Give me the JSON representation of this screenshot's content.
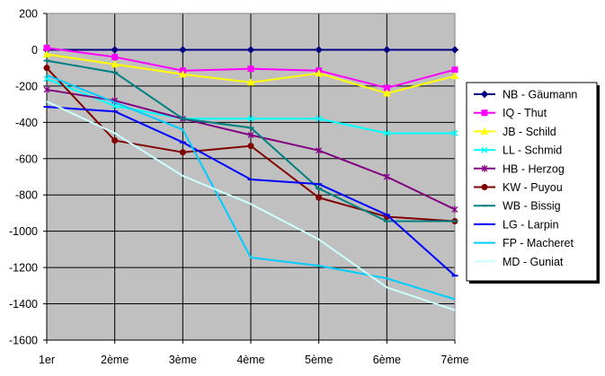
{
  "chart_data": {
    "type": "line",
    "categories": [
      "1er",
      "2ème",
      "3ème",
      "4ème",
      "5ème",
      "6ème",
      "7ème"
    ],
    "ylim": [
      -1600,
      200
    ],
    "yticks": [
      200,
      0,
      -200,
      -400,
      -600,
      -800,
      -1000,
      -1200,
      -1400,
      -1600
    ],
    "grid": true,
    "legend_position": "right",
    "plot_background": "#c0c0c0",
    "series": [
      {
        "name": "NB - Gäumann",
        "color": "#000080",
        "marker": "diamond",
        "values": [
          0,
          0,
          0,
          0,
          0,
          0,
          0
        ]
      },
      {
        "name": "IQ - Thut",
        "color": "#ff00ff",
        "marker": "square",
        "values": [
          10,
          -40,
          -115,
          -105,
          -115,
          -210,
          -110
        ]
      },
      {
        "name": "JB - Schild",
        "color": "#ffff00",
        "marker": "triangle",
        "values": [
          -25,
          -80,
          -135,
          -180,
          -130,
          -240,
          -145
        ]
      },
      {
        "name": "LL - Schmid",
        "color": "#00ffff",
        "marker": "x",
        "values": [
          -160,
          -310,
          -380,
          -380,
          -380,
          -460,
          -460
        ]
      },
      {
        "name": "HB - Herzog",
        "color": "#800080",
        "marker": "star",
        "values": [
          -220,
          -280,
          -380,
          -470,
          -555,
          -700,
          -880
        ]
      },
      {
        "name": "KW - Puyou",
        "color": "#800000",
        "marker": "circle",
        "values": [
          -100,
          -500,
          -565,
          -530,
          -815,
          -920,
          -945
        ]
      },
      {
        "name": "WB - Bissig",
        "color": "#008080",
        "marker": "dash",
        "values": [
          -60,
          -125,
          -380,
          -430,
          -765,
          -945,
          -945
        ]
      },
      {
        "name": "LG - Larpin",
        "color": "#0000ff",
        "marker": "dash",
        "values": [
          -315,
          -340,
          -510,
          -715,
          -740,
          -910,
          -1245
        ]
      },
      {
        "name": "FP - Macheret",
        "color": "#00ccff",
        "marker": "none",
        "values": [
          -140,
          -290,
          -440,
          -1145,
          -1190,
          -1260,
          -1375
        ]
      },
      {
        "name": "MD - Guniat",
        "color": "#ccffff",
        "marker": "none",
        "values": [
          -285,
          -460,
          -695,
          -850,
          -1045,
          -1310,
          -1435
        ]
      }
    ]
  }
}
